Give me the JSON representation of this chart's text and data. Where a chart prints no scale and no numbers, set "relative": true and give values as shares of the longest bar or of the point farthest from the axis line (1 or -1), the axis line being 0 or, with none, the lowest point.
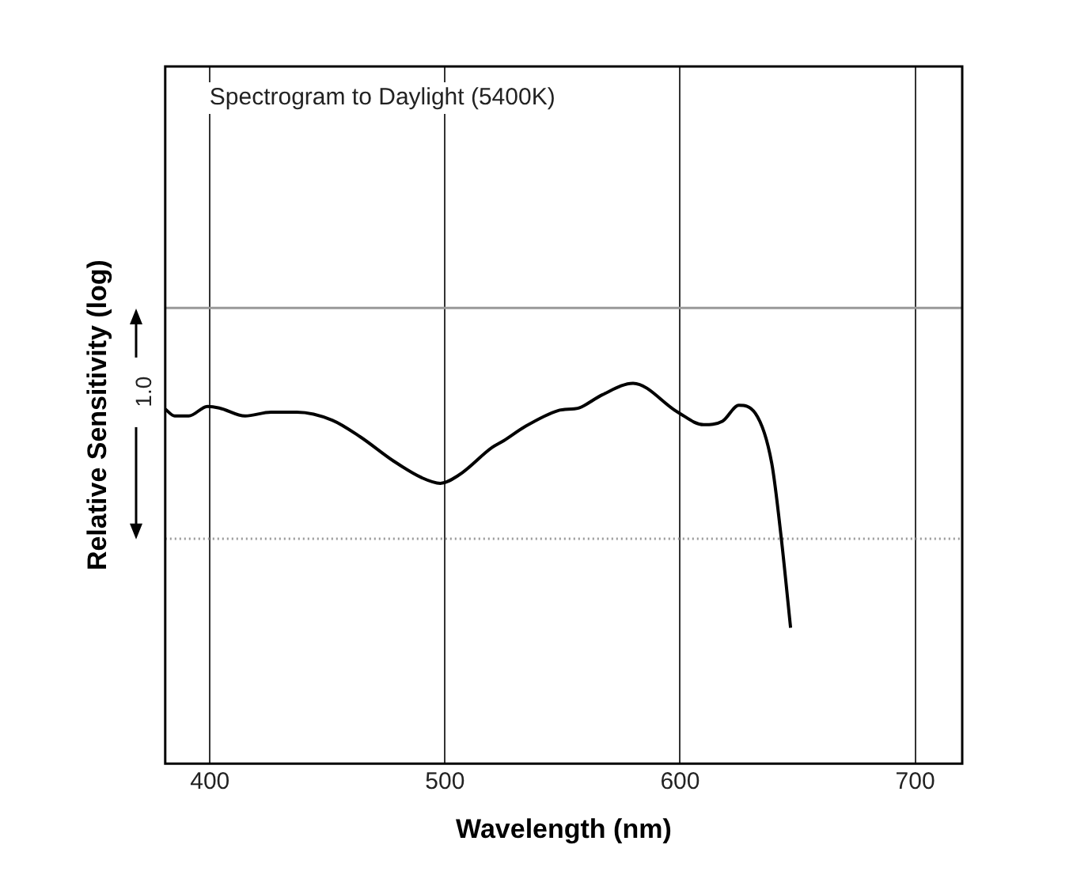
{
  "chart_data": {
    "type": "line",
    "title": "Spectrogram to Daylight (5400K)",
    "xlabel": "Wavelength (nm)",
    "ylabel": "Relative Sensitivity (log)",
    "relative": true,
    "xlim": [
      381,
      720
    ],
    "xticks": [
      400,
      500,
      600,
      700
    ],
    "grid": "x",
    "legend": false,
    "marker": "none",
    "line_style": "solid",
    "series": [
      {
        "color": "#000000",
        "x": [
          381,
          385,
          391,
          399,
          404,
          415,
          426,
          437,
          452,
          464,
          478,
          490,
          498,
          506,
          520,
          525,
          534,
          548,
          555,
          557,
          567,
          580,
          599,
          610,
          618,
          625,
          632,
          639,
          643,
          647
        ],
        "values": [
          0.932,
          0.914,
          0.914,
          0.939,
          0.935,
          0.914,
          0.924,
          0.924,
          0.903,
          0.859,
          0.796,
          0.752,
          0.737,
          0.759,
          0.831,
          0.849,
          0.886,
          0.928,
          0.933,
          0.935,
          0.97,
          1,
          0.924,
          0.891,
          0.9,
          0.942,
          0.921,
          0.789,
          0.595,
          0.357
        ]
      }
    ],
    "ref_lines": [
      {
        "axis": "y",
        "value": 1.198,
        "color": "#999999"
      },
      {
        "axis": "y",
        "value": 0.591,
        "color": "#999999",
        "line_style": "dotted"
      }
    ],
    "annotations": [
      "1.0"
    ]
  }
}
